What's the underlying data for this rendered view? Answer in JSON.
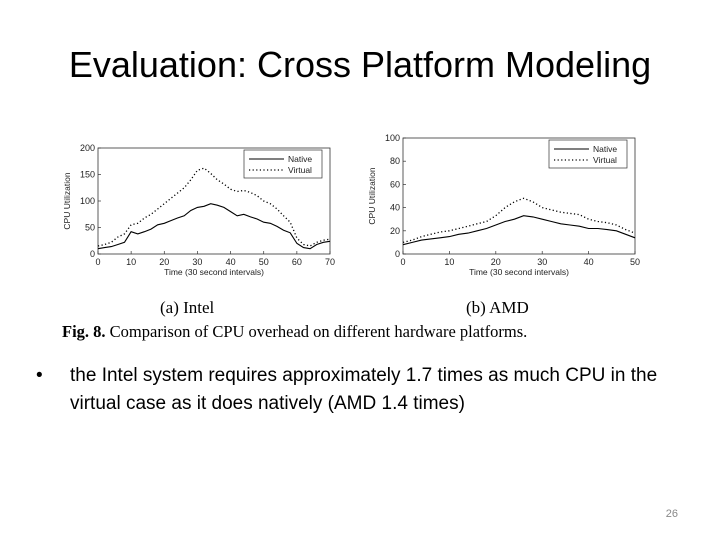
{
  "slide": {
    "title": "Evaluation: Cross Platform Modeling",
    "bullet": "the Intel system requires approximately 1.7 times as much CPU in the virtual case as it does natively (AMD 1.4 times)",
    "bullet_marker": "•",
    "page_number": "26"
  },
  "figure": {
    "caption_label": "Fig. 8.",
    "caption_text": "Comparison of CPU overhead on different hardware platforms.",
    "subcaption_a": "(a)  Intel",
    "subcaption_b": "(b)  AMD"
  },
  "chart_data": [
    {
      "type": "line",
      "title": "(a) Intel",
      "xlabel": "Time (30 second intervals)",
      "ylabel": "CPU Utilization",
      "xlim": [
        0,
        70
      ],
      "ylim": [
        0,
        200
      ],
      "xticks": [
        0,
        10,
        20,
        30,
        40,
        50,
        60,
        70
      ],
      "yticks": [
        0,
        50,
        100,
        150,
        200
      ],
      "legend_position": "top-right",
      "grid": false,
      "x": [
        0,
        2,
        4,
        6,
        8,
        10,
        12,
        14,
        16,
        18,
        20,
        22,
        24,
        26,
        28,
        30,
        32,
        34,
        36,
        38,
        40,
        42,
        44,
        46,
        48,
        50,
        52,
        54,
        56,
        58,
        60,
        62,
        64,
        66,
        68,
        70
      ],
      "series": [
        {
          "name": "Native",
          "style": "solid",
          "values": [
            10,
            12,
            14,
            18,
            22,
            42,
            38,
            42,
            47,
            55,
            58,
            63,
            68,
            72,
            82,
            88,
            90,
            95,
            92,
            88,
            80,
            72,
            75,
            70,
            66,
            60,
            58,
            52,
            45,
            40,
            20,
            12,
            10,
            18,
            22,
            24
          ]
        },
        {
          "name": "Virtual",
          "style": "dotted",
          "values": [
            15,
            18,
            22,
            32,
            38,
            55,
            58,
            68,
            75,
            85,
            95,
            105,
            115,
            125,
            140,
            158,
            162,
            152,
            140,
            132,
            122,
            118,
            120,
            116,
            110,
            100,
            95,
            85,
            72,
            60,
            30,
            18,
            15,
            22,
            26,
            28
          ]
        }
      ]
    },
    {
      "type": "line",
      "title": "(b) AMD",
      "xlabel": "Time (30 second intervals)",
      "ylabel": "CPU Utilization",
      "xlim": [
        0,
        50
      ],
      "ylim": [
        0,
        100
      ],
      "xticks": [
        0,
        10,
        20,
        30,
        40,
        50
      ],
      "yticks": [
        0,
        20,
        40,
        60,
        80,
        100
      ],
      "legend_position": "top-right",
      "grid": false,
      "x": [
        0,
        2,
        4,
        6,
        8,
        10,
        12,
        14,
        16,
        18,
        20,
        22,
        24,
        26,
        28,
        30,
        32,
        34,
        36,
        38,
        40,
        42,
        44,
        46,
        48,
        50
      ],
      "series": [
        {
          "name": "Native",
          "style": "solid",
          "values": [
            8,
            10,
            12,
            13,
            14,
            15,
            17,
            18,
            20,
            22,
            25,
            28,
            30,
            33,
            32,
            30,
            28,
            26,
            25,
            24,
            22,
            22,
            21,
            20,
            17,
            14
          ]
        },
        {
          "name": "Virtual",
          "style": "dotted",
          "values": [
            10,
            12,
            15,
            17,
            19,
            20,
            22,
            24,
            26,
            28,
            33,
            40,
            45,
            48,
            45,
            40,
            38,
            36,
            35,
            34,
            30,
            28,
            27,
            25,
            21,
            18
          ]
        }
      ]
    }
  ]
}
